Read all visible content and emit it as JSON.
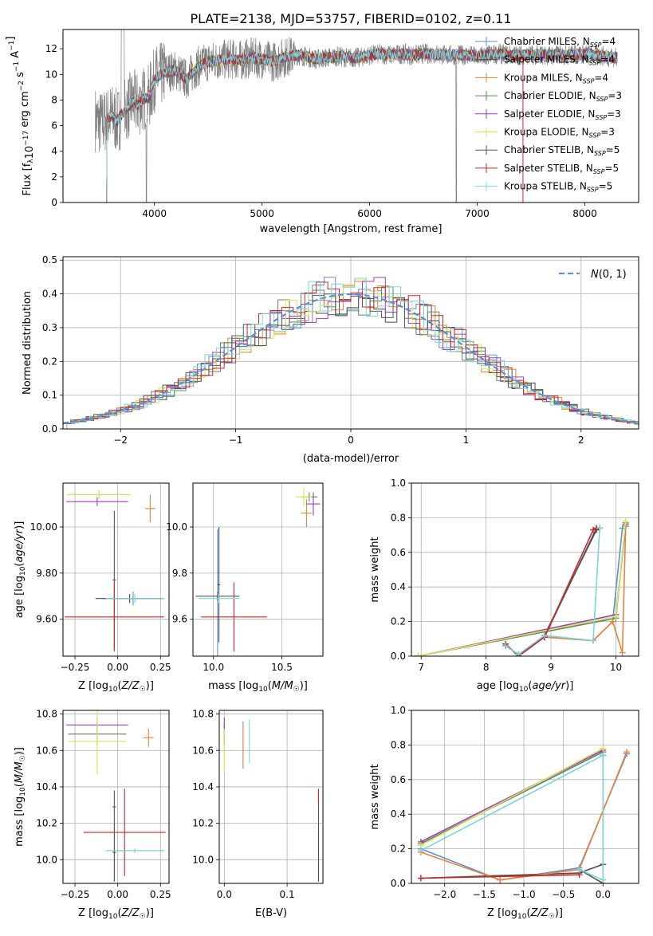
{
  "title": "PLATE=2138, MJD=53757, FIBERID=0102, z=0.11",
  "palette": {
    "Chabrier MILES": "#5b8fd9",
    "Salpeter MILES": "#4b4b4b",
    "Kroupa MILES": "#e8833a",
    "Chabrier ELODIE": "#5c8a5c",
    "Salpeter ELODIE": "#9a3fc0",
    "Kroupa ELODIE": "#dfe35a",
    "Chabrier STELIB": "#555555",
    "Salpeter STELIB": "#c8282a",
    "Kroupa STELIB": "#7fd4d6"
  },
  "chart_data": [
    {
      "id": "spectrum",
      "type": "line",
      "xlabel": "wavelength [Angstrom, rest frame]",
      "ylabel": "Flux [f_λ10^{-17} erg cm^{-2} s^{-1} A^{-1}]",
      "xlim": [
        3150,
        8500
      ],
      "ylim": [
        0,
        13.5
      ],
      "xticks": [
        4000,
        5000,
        6000,
        7000,
        8000
      ],
      "yticks": [
        0,
        2,
        4,
        6,
        8,
        10,
        12
      ],
      "legend": "right",
      "legend_entries": [
        "Chabrier MILES, N_SSP=4",
        "Salpeter MILES, N_SSP=4",
        "Kroupa MILES, N_SSP=4",
        "Chabrier ELODIE, N_SSP=3",
        "Salpeter ELODIE, N_SSP=3",
        "Kroupa ELODIE, N_SSP=3",
        "Chabrier STELIB, N_SSP=5",
        "Salpeter STELIB, N_SSP=5",
        "Kroupa STELIB, N_SSP=5"
      ],
      "data_envelope": {
        "x": [
          3450,
          3500,
          3550,
          3600,
          3650,
          3700,
          3750,
          3800,
          3850,
          3900,
          3950,
          4000,
          4100,
          4200,
          4300,
          4400,
          4500,
          4600,
          4700,
          4800,
          4900,
          5000,
          5100,
          5200,
          5300,
          5400,
          5500,
          5600,
          5700,
          5800,
          5900,
          6000,
          6100,
          6200,
          6300,
          6400,
          6500,
          6600,
          6700,
          6800,
          6900,
          7000,
          7100,
          7200,
          7300,
          7400,
          7600,
          7800,
          8000,
          8200,
          8300
        ],
        "y": [
          6.5,
          6.2,
          6.4,
          6.8,
          6.3,
          6.9,
          7.4,
          7.9,
          7.6,
          8.1,
          8.2,
          9.6,
          10.2,
          10.3,
          9.6,
          10.6,
          11.0,
          11.1,
          11.2,
          11.1,
          11.3,
          11.2,
          11.0,
          11.3,
          11.5,
          11.4,
          11.2,
          11.3,
          11.4,
          11.3,
          11.3,
          11.5,
          11.6,
          11.5,
          11.6,
          11.5,
          11.6,
          11.6,
          11.5,
          11.5,
          11.5,
          11.4,
          11.5,
          11.6,
          11.5,
          11.5,
          11.5,
          11.5,
          11.6,
          11.4,
          11.3
        ]
      }
    },
    {
      "id": "residuals",
      "type": "line",
      "xlabel": "(data-model)/error",
      "ylabel": "Normed distribution",
      "xlim": [
        -2.5,
        2.5
      ],
      "ylim": [
        0,
        0.51
      ],
      "xticks": [
        -2,
        -1,
        0,
        1,
        2
      ],
      "yticks": [
        0.0,
        0.1,
        0.2,
        0.3,
        0.4,
        0.5
      ],
      "legend_entries": [
        "N(0,1)"
      ],
      "legend": "top-right",
      "reference": {
        "name": "N(0,1)",
        "mean": 0,
        "sigma": 1
      }
    },
    {
      "id": "age-vs-Z",
      "type": "scatter",
      "xlabel": "Z [log10(Z/Z☉)]",
      "ylabel": "age  [log10(age/yr)]",
      "xlim": [
        -0.32,
        0.3
      ],
      "ylim": [
        9.44,
        10.19
      ],
      "xticks": [
        -0.25,
        0.0,
        0.25
      ],
      "yticks": [
        9.6,
        9.8,
        10.0
      ],
      "points": [
        {
          "model": "Chabrier MILES",
          "x": 0.09,
          "y": 9.69,
          "xerr": 0.18,
          "yerr": 0.03
        },
        {
          "model": "Salpeter MILES",
          "x": 0.07,
          "y": 9.69,
          "xerr": 0.2,
          "yerr": 0.02
        },
        {
          "model": "Kroupa MILES",
          "x": 0.19,
          "y": 10.08,
          "xerr": 0.03,
          "yerr": 0.06
        },
        {
          "model": "Chabrier ELODIE",
          "x": -0.11,
          "y": 10.14,
          "xerr": 0.17,
          "yerr": 0.02
        },
        {
          "model": "Salpeter ELODIE",
          "x": -0.12,
          "y": 10.11,
          "xerr": 0.18,
          "yerr": 0.02
        },
        {
          "model": "Kroupa ELODIE",
          "x": -0.11,
          "y": 10.14,
          "xerr": 0.19,
          "yerr": 0.02
        },
        {
          "model": "Chabrier STELIB",
          "x": -0.02,
          "y": 9.77,
          "xerr": 0.01,
          "yerr": 0.3
        },
        {
          "model": "Salpeter STELIB",
          "x": -0.02,
          "y": 9.61,
          "xerr": 0.29,
          "yerr": 0.15
        },
        {
          "model": "Kroupa STELIB",
          "x": 0.1,
          "y": 9.69,
          "xerr": 0.17,
          "yerr": 0.02
        }
      ]
    },
    {
      "id": "age-vs-mass",
      "type": "scatter",
      "xlabel": "mass [log10(M/M☉)]",
      "ylabel": "",
      "xlim": [
        9.85,
        10.8
      ],
      "ylim": [
        9.44,
        10.19
      ],
      "xticks": [
        10.0,
        10.5
      ],
      "yticks": [
        9.6,
        9.8,
        10.0
      ],
      "points": [
        {
          "model": "Chabrier MILES",
          "x": 10.03,
          "y": 9.69,
          "xerr": 0.01,
          "yerr": 0.3
        },
        {
          "model": "Salpeter MILES",
          "x": 10.04,
          "y": 9.75,
          "xerr": 0.01,
          "yerr": 0.25
        },
        {
          "model": "Kroupa MILES",
          "x": 10.68,
          "y": 10.06,
          "xerr": 0.04,
          "yerr": 0.06
        },
        {
          "model": "Chabrier ELODIE",
          "x": 10.7,
          "y": 10.13,
          "xerr": 0.06,
          "yerr": 0.02
        },
        {
          "model": "Salpeter ELODIE",
          "x": 10.73,
          "y": 10.1,
          "xerr": 0.05,
          "yerr": 0.05
        },
        {
          "model": "Kroupa ELODIE",
          "x": 10.66,
          "y": 10.13,
          "xerr": 0.06,
          "yerr": 0.04
        },
        {
          "model": "Chabrier STELIB",
          "x": 10.03,
          "y": 9.7,
          "xerr": 0.16,
          "yerr": 0.02
        },
        {
          "model": "Salpeter STELIB",
          "x": 10.15,
          "y": 9.61,
          "xerr": 0.24,
          "yerr": 0.15
        },
        {
          "model": "Kroupa STELIB",
          "x": 10.04,
          "y": 9.69,
          "xerr": 0.15,
          "yerr": 0.02
        }
      ]
    },
    {
      "id": "weight-vs-age",
      "type": "line",
      "xlabel": "age  [log10(age/yr)]",
      "ylabel": "mass weight",
      "xlim": [
        6.85,
        10.35
      ],
      "ylim": [
        0,
        1.0
      ],
      "xticks": [
        7,
        8,
        9,
        10
      ],
      "yticks": [
        0.0,
        0.2,
        0.4,
        0.6,
        0.8,
        1.0
      ],
      "series": [
        {
          "model": "Chabrier MILES",
          "x": [
            8.3,
            8.5,
            8.9,
            9.65,
            9.95,
            10.1
          ],
          "y": [
            0.06,
            0.01,
            0.11,
            0.09,
            0.2,
            0.74
          ]
        },
        {
          "model": "Salpeter MILES",
          "x": [
            8.3,
            8.5,
            8.9,
            9.7,
            9.75
          ],
          "y": [
            0.07,
            0.0,
            0.12,
            0.73,
            0.74
          ]
        },
        {
          "model": "Kroupa MILES",
          "x": [
            8.3,
            8.5,
            8.9,
            9.65,
            9.95,
            10.1,
            10.15
          ],
          "y": [
            0.06,
            0.01,
            0.11,
            0.09,
            0.2,
            0.02,
            0.75
          ]
        },
        {
          "model": "Chabrier ELODIE",
          "x": [
            6.95,
            10.0,
            10.15
          ],
          "y": [
            0.0,
            0.22,
            0.77
          ]
        },
        {
          "model": "Salpeter ELODIE",
          "x": [
            6.95,
            10.0,
            10.15
          ],
          "y": [
            0.0,
            0.24,
            0.76
          ]
        },
        {
          "model": "Kroupa ELODIE",
          "x": [
            6.95,
            10.0,
            10.15
          ],
          "y": [
            0.0,
            0.23,
            0.78
          ]
        },
        {
          "model": "Chabrier STELIB",
          "x": [
            8.3,
            8.5,
            8.9,
            9.7,
            9.75
          ],
          "y": [
            0.06,
            0.01,
            0.11,
            0.74,
            0.74
          ]
        },
        {
          "model": "Salpeter STELIB",
          "x": [
            8.3,
            8.5,
            8.9,
            9.65,
            9.7
          ],
          "y": [
            0.07,
            0.0,
            0.11,
            0.73,
            0.74
          ]
        },
        {
          "model": "Kroupa STELIB",
          "x": [
            8.3,
            8.5,
            8.9,
            9.65,
            9.75
          ],
          "y": [
            0.06,
            0.01,
            0.12,
            0.09,
            0.74
          ]
        }
      ]
    },
    {
      "id": "mass-vs-Z",
      "type": "scatter",
      "xlabel": "Z [log10(Z/Z☉)]",
      "ylabel": "mass [log10(M/M☉)]",
      "xlim": [
        -0.32,
        0.3
      ],
      "ylim": [
        9.87,
        10.82
      ],
      "xticks": [
        -0.25,
        0.0,
        0.25
      ],
      "yticks": [
        10.0,
        10.2,
        10.4,
        10.6,
        10.8
      ],
      "points": [
        {
          "model": "Chabrier MILES",
          "x": 0.1,
          "y": 10.05,
          "xerr": 0.17,
          "yerr": 0.01
        },
        {
          "model": "Salpeter MILES",
          "x": -0.02,
          "y": 10.04,
          "xerr": 0.01,
          "yerr": 0.16
        },
        {
          "model": "Kroupa MILES",
          "x": 0.18,
          "y": 10.67,
          "xerr": 0.03,
          "yerr": 0.05
        },
        {
          "model": "Chabrier ELODIE",
          "x": -0.12,
          "y": 10.69,
          "xerr": 0.17,
          "yerr": 0.06
        },
        {
          "model": "Salpeter ELODIE",
          "x": -0.12,
          "y": 10.74,
          "xerr": 0.18,
          "yerr": 0.04
        },
        {
          "model": "Kroupa ELODIE",
          "x": -0.12,
          "y": 10.65,
          "xerr": 0.17,
          "yerr": 0.18
        },
        {
          "model": "Chabrier STELIB",
          "x": -0.02,
          "y": 10.29,
          "xerr": 0.01,
          "yerr": 0.09
        },
        {
          "model": "Salpeter STELIB",
          "x": 0.04,
          "y": 10.15,
          "xerr": 0.24,
          "yerr": 0.24
        },
        {
          "model": "Kroupa STELIB",
          "x": 0.1,
          "y": 10.05,
          "xerr": 0.17,
          "yerr": 0.01
        }
      ]
    },
    {
      "id": "mass-vs-EBV",
      "type": "scatter",
      "xlabel": "E(B-V)",
      "ylabel": "",
      "xlim": [
        -0.008,
        0.157
      ],
      "ylim": [
        9.87,
        10.82
      ],
      "xticks": [
        0.0,
        0.1
      ],
      "yticks": [
        10.0,
        10.2,
        10.4,
        10.6,
        10.8
      ],
      "points": [
        {
          "model": "Chabrier MILES",
          "x": 0.03,
          "y": 10.63,
          "xerr": 0.0,
          "yerr": 0.13
        },
        {
          "model": "Salpeter MILES",
          "x": 0.15,
          "y": 10.04,
          "xerr": 0.0,
          "yerr": 0.16
        },
        {
          "model": "Kroupa MILES",
          "x": 0.03,
          "y": 10.62,
          "xerr": 0.0,
          "yerr": 0.12
        },
        {
          "model": "Chabrier ELODIE",
          "x": 0.0,
          "y": 10.69,
          "xerr": 0.0,
          "yerr": 0.06
        },
        {
          "model": "Salpeter ELODIE",
          "x": 0.0,
          "y": 10.74,
          "xerr": 0.0,
          "yerr": 0.04
        },
        {
          "model": "Kroupa ELODIE",
          "x": 0.0,
          "y": 10.6,
          "xerr": 0.0,
          "yerr": 0.12
        },
        {
          "model": "Chabrier STELIB",
          "x": 0.15,
          "y": 10.29,
          "xerr": 0.0,
          "yerr": 0.09
        },
        {
          "model": "Salpeter STELIB",
          "x": 0.15,
          "y": 10.35,
          "xerr": 0.0,
          "yerr": 0.04
        },
        {
          "model": "Kroupa STELIB",
          "x": 0.04,
          "y": 10.65,
          "xerr": 0.0,
          "yerr": 0.12
        }
      ]
    },
    {
      "id": "weight-vs-Z",
      "type": "line",
      "xlabel": "Z [log10(Z/Z☉)]",
      "ylabel": "mass weight",
      "xlim": [
        -2.42,
        0.45
      ],
      "ylim": [
        0,
        1.0
      ],
      "xticks": [
        -2.0,
        -1.5,
        -1.0,
        -0.5,
        0.0
      ],
      "yticks": [
        0.0,
        0.2,
        0.4,
        0.6,
        0.8,
        1.0
      ],
      "series": [
        {
          "model": "Chabrier MILES",
          "x": [
            -2.3,
            -1.3,
            -0.3,
            0.3
          ],
          "y": [
            0.2,
            0.02,
            0.09,
            0.75
          ]
        },
        {
          "model": "Salpeter MILES",
          "x": [
            -2.3,
            -0.3,
            0.0
          ],
          "y": [
            0.03,
            0.06,
            0.11
          ]
        },
        {
          "model": "Kroupa MILES",
          "x": [
            -2.3,
            -1.3,
            -0.3,
            0.3
          ],
          "y": [
            0.18,
            0.02,
            0.08,
            0.76
          ]
        },
        {
          "model": "Chabrier ELODIE",
          "x": [
            -2.3,
            0.0,
            0.0
          ],
          "y": [
            0.23,
            0.76,
            0.74
          ]
        },
        {
          "model": "Salpeter ELODIE",
          "x": [
            -2.3,
            0.0
          ],
          "y": [
            0.24,
            0.77
          ]
        },
        {
          "model": "Kroupa ELODIE",
          "x": [
            -2.3,
            0.0
          ],
          "y": [
            0.22,
            0.78
          ]
        },
        {
          "model": "Chabrier STELIB",
          "x": [
            -0.3,
            0.0,
            0.0
          ],
          "y": [
            0.08,
            0.0,
            0.74
          ]
        },
        {
          "model": "Salpeter STELIB",
          "x": [
            -2.3,
            -0.3
          ],
          "y": [
            0.03,
            0.05
          ]
        },
        {
          "model": "Kroupa STELIB",
          "x": [
            -0.3,
            0.0,
            0.0,
            -2.3
          ],
          "y": [
            0.08,
            0.02,
            0.74,
            0.19
          ]
        }
      ]
    }
  ]
}
